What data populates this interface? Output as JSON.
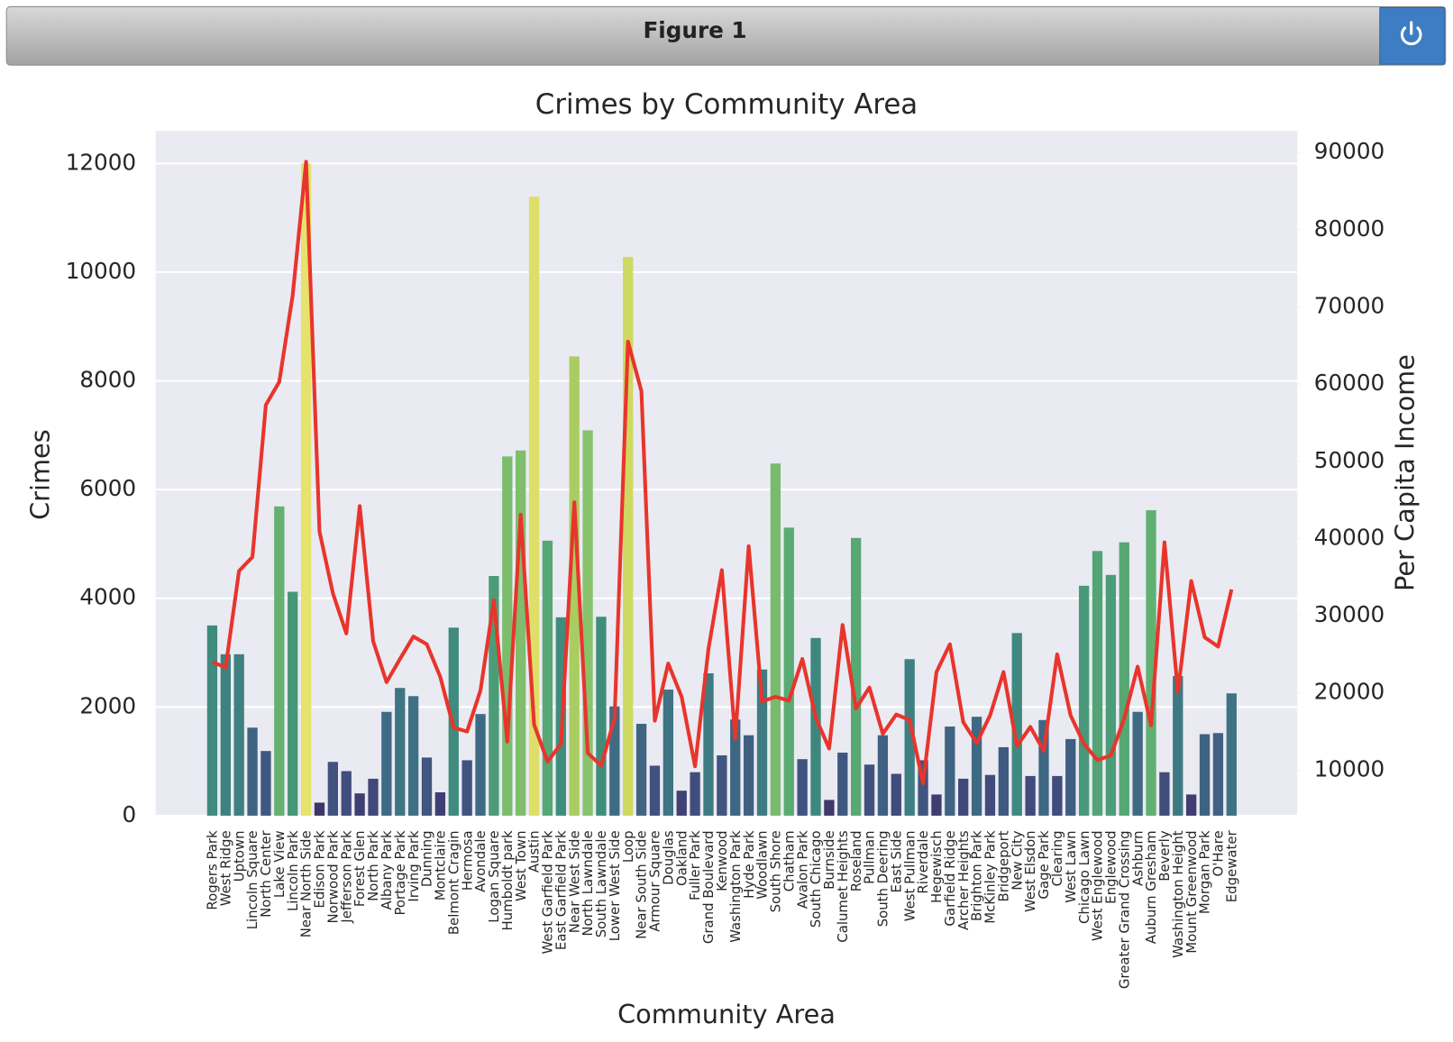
{
  "window": {
    "title": "Figure 1"
  },
  "chart_data": {
    "type": "bar",
    "title": "Crimes by Community Area",
    "xlabel": "Community Area",
    "ylabel": "Crimes",
    "y2label": "Per Capita Income",
    "categories": [
      "Rogers Park",
      "West Ridge",
      "Uptown",
      "Lincoln Square",
      "North Center",
      "Lake View",
      "Lincoln Park",
      "Near North Side",
      "Edison Park",
      "Norwood Park",
      "Jefferson Park",
      "Forest Glen",
      "North Park",
      "Albany Park",
      "Portage Park",
      "Irving Park",
      "Dunning",
      "Montclaire",
      "Belmont Cragin",
      "Hermosa",
      "Avondale",
      "Logan Square",
      "Humboldt park",
      "West Town",
      "Austin",
      "West Garfield Park",
      "East Garfield Park",
      "Near West Side",
      "North Lawndale",
      "South Lawndale",
      "Lower West Side",
      "Loop",
      "Near South Side",
      "Armour Square",
      "Douglas",
      "Oakland",
      "Fuller Park",
      "Grand Boulevard",
      "Kenwood",
      "Washington Park",
      "Hyde Park",
      "Woodlawn",
      "South Shore",
      "Chatham",
      "Avalon Park",
      "South Chicago",
      "Burnside",
      "Calumet Heights",
      "Roseland",
      "Pullman",
      "South Deering",
      "East Side",
      "West Pullman",
      "Riverdale",
      "Hegewisch",
      "Garfield Ridge",
      "Archer Heights",
      "Brighton Park",
      "McKinley Park",
      "Bridgeport",
      "New City",
      "West Elsdon",
      "Gage Park",
      "Clearing",
      "West Lawn",
      "Chicago Lawn",
      "West Englewood",
      "Englewood",
      "Greater Grand Crossing",
      "Ashburn",
      "Auburn Gresham",
      "Beverly",
      "Washington Height",
      "Mount Greenwood",
      "Morgan Park",
      "O'Hare",
      "Edgewater"
    ],
    "series": [
      {
        "type": "bar",
        "palette": [
          "#e6e26c",
          "#c2d45c",
          "#8cc46a",
          "#5aac72",
          "#3f8f7c",
          "#3e7584",
          "#3f5c82",
          "#41467a",
          "#3c2f65",
          "#2c1745"
        ],
        "values": [
          3500,
          2970,
          2970,
          1620,
          1190,
          5690,
          4120,
          12000,
          240,
          990,
          820,
          410,
          680,
          1910,
          2350,
          2200,
          1070,
          430,
          3460,
          1020,
          1870,
          4410,
          6610,
          6720,
          11390,
          5060,
          3650,
          8450,
          7090,
          3660,
          2010,
          10280,
          1690,
          920,
          2320,
          460,
          800,
          2620,
          1110,
          1770,
          1480,
          2690,
          6480,
          5300,
          1040,
          3270,
          290,
          1160,
          5110,
          940,
          1480,
          770,
          2880,
          1020,
          390,
          1640,
          680,
          1820,
          750,
          1260,
          3360,
          730,
          1760,
          730,
          1410,
          4230,
          4870,
          4430,
          5030,
          1910,
          5620,
          800,
          2570,
          390,
          1500,
          1520,
          2250
        ]
      },
      {
        "type": "line",
        "color": "#e8352c",
        "axis": "y2",
        "values": [
          24000,
          23300,
          35800,
          37600,
          57300,
          60300,
          71500,
          88800,
          40900,
          32900,
          27700,
          44200,
          26700,
          21400,
          24400,
          27300,
          26300,
          22100,
          15500,
          15000,
          20300,
          32000,
          13700,
          43100,
          15900,
          11100,
          13400,
          44700,
          12200,
          10600,
          16700,
          65500,
          59100,
          16400,
          23800,
          19500,
          10500,
          25700,
          35900,
          14100,
          39000,
          18900,
          19500,
          19000,
          24400,
          16800,
          12800,
          28800,
          18000,
          20700,
          14700,
          17200,
          16500,
          8300,
          22700,
          26300,
          16200,
          13500,
          17100,
          22700,
          13100,
          15600,
          12500,
          25000,
          17100,
          13400,
          11300,
          11900,
          16700,
          23400,
          15800,
          39500,
          20100,
          34500,
          27200,
          26000,
          33400
        ]
      }
    ],
    "ylim": [
      0,
      12600
    ],
    "yticks": [
      0,
      2000,
      4000,
      6000,
      8000,
      10000,
      12000
    ],
    "y2lim": [
      4100,
      92800
    ],
    "y2ticks": [
      10000,
      20000,
      30000,
      40000,
      50000,
      60000,
      70000,
      80000,
      90000
    ],
    "grid": true
  }
}
